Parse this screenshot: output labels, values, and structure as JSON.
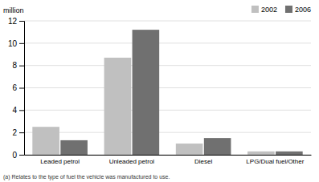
{
  "chart_data": {
    "type": "bar",
    "categories": [
      "Leaded petrol",
      "Unleaded petrol",
      "Diesel",
      "LPG/Dual fuel/Other"
    ],
    "series": [
      {
        "name": "2002",
        "color": "#c0c0c0",
        "values": [
          2.5,
          8.7,
          1.0,
          0.3
        ]
      },
      {
        "name": "2006",
        "color": "#707070",
        "values": [
          1.3,
          11.2,
          1.5,
          0.3
        ]
      }
    ],
    "ylabel": "million",
    "footnote": "(a) Relates to the type of fuel the vehicle was manufactured to use.",
    "ylim": [
      0,
      12
    ],
    "yticks": [
      0,
      2,
      4,
      6,
      8,
      10,
      12
    ],
    "grid": true,
    "legend": "upper right"
  }
}
